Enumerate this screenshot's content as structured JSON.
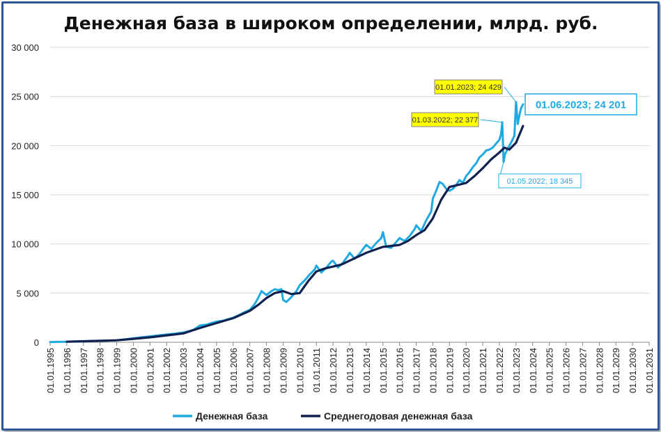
{
  "chart_data": {
    "type": "line",
    "title": "Денежная база в широком определении, млрд. руб.",
    "xlabel": "",
    "ylabel": "",
    "ylim": [
      0,
      30000
    ],
    "yticks": [
      "0",
      "5 000",
      "10 000",
      "15 000",
      "20 000",
      "25 000",
      "30 000"
    ],
    "yticks_values": [
      0,
      5000,
      10000,
      15000,
      20000,
      25000,
      30000
    ],
    "xlim": [
      1995,
      2031
    ],
    "xticks": [
      "01.01.1995",
      "01.01.1996",
      "01.01.1997",
      "01.01.1998",
      "01.01.1999",
      "01.01.2000",
      "01.01.2001",
      "01.01.2002",
      "01.01.2003",
      "01.01.2004",
      "01.01.2005",
      "01.01.2006",
      "01.01.2007",
      "01.01.2008",
      "01.01.2009",
      "01.01.2010",
      "01.01.2011",
      "01.01.2012",
      "01.01.2013",
      "01.01.2014",
      "01.01.2015",
      "01.01.2016",
      "01.01.2017",
      "01.01.2018",
      "01.01.2019",
      "01.01.2020",
      "01.01.2021",
      "01.01.2022",
      "01.01.2023",
      "01.01.2024",
      "01.01.2025",
      "01.01.2026",
      "01.01.2027",
      "01.01.2028",
      "01.01.2029",
      "01.01.2030",
      "01.01.2031"
    ],
    "grid": "horizontal",
    "legend_position": "bottom",
    "series": [
      {
        "name": "Денежная база",
        "color": "#1fa9e1",
        "x": [
          1995.0,
          1995.5,
          1996.0,
          1996.5,
          1997.0,
          1997.5,
          1998.0,
          1998.5,
          1999.0,
          1999.5,
          2000.0,
          2000.5,
          2001.0,
          2001.5,
          2002.0,
          2002.5,
          2003.0,
          2003.4,
          2003.6,
          2004.0,
          2004.4,
          2004.6,
          2005.0,
          2005.4,
          2005.6,
          2006.0,
          2006.4,
          2006.6,
          2007.0,
          2007.3,
          2007.5,
          2007.7,
          2008.0,
          2008.3,
          2008.5,
          2008.7,
          2008.9,
          2009.0,
          2009.2,
          2009.5,
          2009.8,
          2010.0,
          2010.3,
          2010.6,
          2010.9,
          2011.0,
          2011.3,
          2011.6,
          2011.9,
          2012.0,
          2012.3,
          2012.6,
          2012.9,
          2013.0,
          2013.3,
          2013.6,
          2013.9,
          2014.0,
          2014.3,
          2014.6,
          2014.9,
          2015.0,
          2015.2,
          2015.5,
          2015.8,
          2016.0,
          2016.3,
          2016.6,
          2016.9,
          2017.0,
          2017.3,
          2017.6,
          2017.9,
          2018.0,
          2018.2,
          2018.4,
          2018.6,
          2018.8,
          2019.0,
          2019.2,
          2019.4,
          2019.6,
          2019.8,
          2020.0,
          2020.2,
          2020.4,
          2020.6,
          2020.8,
          2021.0,
          2021.2,
          2021.4,
          2021.6,
          2021.8,
          2022.0,
          2022.1,
          2022.17,
          2022.25,
          2022.33,
          2022.5,
          2022.7,
          2022.9,
          2023.0,
          2023.1,
          2023.2,
          2023.3,
          2023.42
        ],
        "y": [
          20,
          40,
          60,
          90,
          110,
          140,
          150,
          170,
          200,
          300,
          400,
          520,
          600,
          700,
          800,
          880,
          1000,
          1150,
          1250,
          1700,
          1800,
          1900,
          2100,
          2200,
          2300,
          2500,
          2800,
          3000,
          3300,
          3900,
          4500,
          5200,
          4800,
          5200,
          5400,
          5300,
          5400,
          4300,
          4100,
          4600,
          5200,
          5800,
          6300,
          6900,
          7400,
          7800,
          7100,
          7600,
          8200,
          8300,
          7600,
          8100,
          8800,
          9100,
          8500,
          9000,
          9700,
          9900,
          9500,
          10100,
          10600,
          11200,
          9700,
          9600,
          10200,
          10600,
          10300,
          10800,
          11500,
          11900,
          11300,
          12400,
          13300,
          14600,
          15400,
          16300,
          16100,
          15600,
          15400,
          15600,
          16000,
          16500,
          16200,
          16900,
          17300,
          17800,
          18200,
          18800,
          19100,
          19500,
          19600,
          19800,
          20200,
          20600,
          21200,
          22377,
          18345,
          19100,
          19700,
          20300,
          21000,
          24429,
          22200,
          23100,
          23800,
          24201
        ]
      },
      {
        "name": "Среднегодовая денежная база",
        "color": "#10214f",
        "x": [
          1996.0,
          1997.0,
          1998.0,
          1999.0,
          2000.0,
          2001.0,
          2002.0,
          2003.0,
          2004.0,
          2005.0,
          2006.0,
          2007.0,
          2007.5,
          2008.0,
          2008.5,
          2009.0,
          2009.5,
          2010.0,
          2010.5,
          2011.0,
          2011.5,
          2012.0,
          2012.5,
          2013.0,
          2013.5,
          2014.0,
          2014.5,
          2015.0,
          2015.5,
          2016.0,
          2016.5,
          2017.0,
          2017.5,
          2018.0,
          2018.5,
          2019.0,
          2019.5,
          2020.0,
          2020.5,
          2021.0,
          2021.5,
          2022.0,
          2022.3,
          2022.6,
          2023.0,
          2023.42
        ],
        "y": [
          60,
          100,
          150,
          200,
          350,
          500,
          700,
          900,
          1450,
          1950,
          2450,
          3200,
          3800,
          4500,
          5000,
          5200,
          4900,
          5000,
          6200,
          7200,
          7500,
          7700,
          7900,
          8300,
          8700,
          9100,
          9400,
          9700,
          9800,
          9900,
          10300,
          10900,
          11400,
          12600,
          14500,
          15800,
          16000,
          16200,
          16900,
          17700,
          18600,
          19300,
          19800,
          19600,
          20300,
          22000
        ]
      }
    ],
    "annotations": [
      {
        "text": "01.01.2023; 24 429",
        "x": 2023.0,
        "y": 24429,
        "style": "yellow"
      },
      {
        "text": "01.03.2022; 22 377",
        "x": 2022.17,
        "y": 22377,
        "style": "yellow"
      },
      {
        "text": "01.06.2023;  24 201",
        "x": 2023.42,
        "y": 24201,
        "style": "blue-large"
      },
      {
        "text": "01.05.2022; 18 345",
        "x": 2022.25,
        "y": 18345,
        "style": "blue-small"
      }
    ]
  }
}
